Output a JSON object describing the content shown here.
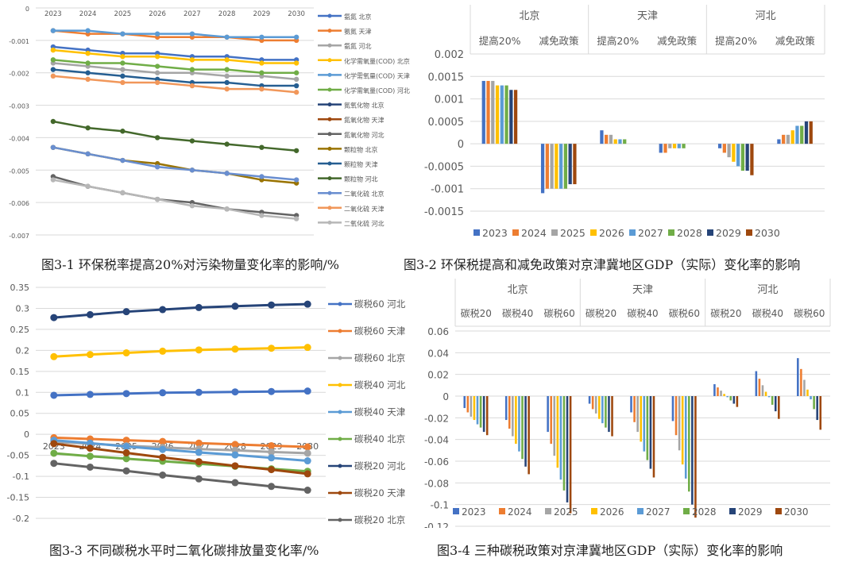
{
  "chart_data": [
    {
      "id": "fig3-1",
      "type": "line",
      "title": "",
      "caption": "图3-1 环保税率提高20%对污染物量变化率的影响/%",
      "x": [
        "2023",
        "2024",
        "2025",
        "2026",
        "2027",
        "2028",
        "2029",
        "2030"
      ],
      "ylim": [
        -0.007,
        0
      ],
      "yticks": [
        0,
        -0.001,
        -0.002,
        -0.003,
        -0.004,
        -0.005,
        -0.006,
        -0.007
      ],
      "ytick_labels": [
        "0",
        "-0.001",
        "-0.002",
        "-0.003",
        "-0.004",
        "-0.005",
        "-0.006",
        "-0.007"
      ],
      "grid": true,
      "legend_position": "right",
      "series": [
        {
          "name": "氨氮 北京",
          "color": "#4472C4",
          "values": [
            -0.0012,
            -0.0013,
            -0.0014,
            -0.0014,
            -0.0015,
            -0.0015,
            -0.0016,
            -0.0016
          ]
        },
        {
          "name": "氨氮 天津",
          "color": "#ED7D31",
          "values": [
            -0.0007,
            -0.0008,
            -0.0008,
            -0.0009,
            -0.0009,
            -0.0009,
            -0.001,
            -0.001
          ]
        },
        {
          "name": "氨氮 河北",
          "color": "#A5A5A5",
          "values": [
            -0.0017,
            -0.0018,
            -0.0019,
            -0.002,
            -0.002,
            -0.0021,
            -0.0021,
            -0.0022
          ]
        },
        {
          "name": "化学需氧量(COD) 北京",
          "color": "#FFC000",
          "values": [
            -0.0013,
            -0.0014,
            -0.0015,
            -0.0015,
            -0.0016,
            -0.0016,
            -0.0017,
            -0.0017
          ]
        },
        {
          "name": "化学需氧量(COD) 天津",
          "color": "#5B9BD5",
          "values": [
            -0.0007,
            -0.0007,
            -0.0008,
            -0.0008,
            -0.0008,
            -0.0009,
            -0.0009,
            -0.0009
          ]
        },
        {
          "name": "化学需氧量(COD) 河北",
          "color": "#70AD47",
          "values": [
            -0.0016,
            -0.0017,
            -0.0017,
            -0.0018,
            -0.0019,
            -0.0019,
            -0.002,
            -0.002
          ]
        },
        {
          "name": "氮氧化物 北京",
          "color": "#264478",
          "values": null
        },
        {
          "name": "氮氧化物 天津",
          "color": "#9E480E",
          "values": null
        },
        {
          "name": "氮氧化物 河北",
          "color": "#636363",
          "values": [
            -0.0052,
            -0.0055,
            -0.0057,
            -0.0059,
            -0.006,
            -0.0062,
            -0.0063,
            -0.0064
          ]
        },
        {
          "name": "颗粒物 北京",
          "color": "#997300",
          "values": [
            -0.0043,
            -0.0045,
            -0.0047,
            -0.0048,
            -0.005,
            -0.0051,
            -0.0053,
            -0.0054
          ]
        },
        {
          "name": "颗粒物 天津",
          "color": "#255E91",
          "values": [
            -0.0019,
            -0.002,
            -0.0021,
            -0.0022,
            -0.0023,
            -0.0023,
            -0.0024,
            -0.0024
          ]
        },
        {
          "name": "颗粒物 河北",
          "color": "#43682B",
          "values": [
            -0.0035,
            -0.0037,
            -0.0038,
            -0.004,
            -0.0041,
            -0.0042,
            -0.0043,
            -0.0044
          ]
        },
        {
          "name": "二氧化硫 北京",
          "color": "#698ED0",
          "values": [
            -0.0043,
            -0.0045,
            -0.0047,
            -0.0049,
            -0.005,
            -0.0051,
            -0.0052,
            -0.0053
          ]
        },
        {
          "name": "二氧化硫 天津",
          "color": "#F1975A",
          "values": [
            -0.0021,
            -0.0022,
            -0.0023,
            -0.0023,
            -0.0024,
            -0.0025,
            -0.0025,
            -0.0026
          ]
        },
        {
          "name": "二氧化硫 河北",
          "color": "#B7B7B7",
          "values": [
            -0.0053,
            -0.0055,
            -0.0057,
            -0.0059,
            -0.0061,
            -0.0062,
            -0.0064,
            -0.0065
          ]
        }
      ]
    },
    {
      "id": "fig3-2",
      "type": "bar",
      "title": "",
      "caption": "图3-2 环保税提高和减免政策对京津冀地区GDP（实际）变化率的影响",
      "region_labels": [
        "北京",
        "天津",
        "河北"
      ],
      "categories": [
        "提高20%",
        "减免政策",
        "提高20%",
        "减免政策",
        "提高20%",
        "减免政策"
      ],
      "ylim": [
        -0.0015,
        0.002
      ],
      "yticks": [
        0.002,
        0.0015,
        0.001,
        0.0005,
        0,
        -0.0005,
        -0.001,
        -0.0015
      ],
      "ytick_labels": [
        "0.002",
        "0.0015",
        "0.001",
        "0.0005",
        "0",
        "-0.0005",
        "-0.001",
        "-0.0015"
      ],
      "grid": true,
      "legend_position": "bottom",
      "series_names": [
        "2023",
        "2024",
        "2025",
        "2026",
        "2027",
        "2028",
        "2029",
        "2030"
      ],
      "series_colors": [
        "#4472C4",
        "#ED7D31",
        "#A5A5A5",
        "#FFC000",
        "#5B9BD5",
        "#70AD47",
        "#264478",
        "#9E480E"
      ],
      "values": [
        [
          0.0014,
          0.0014,
          0.0014,
          0.0013,
          0.0013,
          0.0013,
          0.0012,
          0.0012
        ],
        [
          -0.0011,
          -0.001,
          -0.001,
          -0.001,
          -0.001,
          -0.001,
          -0.0009,
          -0.0009
        ],
        [
          0.0003,
          0.0002,
          0.0002,
          0.0001,
          0.0001,
          0.0001,
          0,
          0
        ],
        [
          -0.0002,
          -0.0002,
          -0.0001,
          -0.0001,
          -0.0001,
          -0.0001,
          0,
          0
        ],
        [
          -0.0001,
          -0.0002,
          -0.0003,
          -0.0004,
          -0.0005,
          -0.0006,
          -0.0006,
          -0.0007
        ],
        [
          0.0001,
          0.0002,
          0.0002,
          0.0003,
          0.0004,
          0.0004,
          0.0005,
          0.0005
        ]
      ]
    },
    {
      "id": "fig3-3",
      "type": "line",
      "title": "",
      "caption": "图3-3 不同碳税水平时二氧化碳排放量变化率/%",
      "x": [
        "2023",
        "2024",
        "2025",
        "2026",
        "2027",
        "2028",
        "2029",
        "2030"
      ],
      "ylim": [
        -0.2,
        0.35
      ],
      "yticks": [
        0.35,
        0.3,
        0.25,
        0.2,
        0.15,
        0.1,
        0.05,
        0,
        -0.05,
        -0.1,
        -0.15,
        -0.2
      ],
      "ytick_labels": [
        "0.35",
        "0.3",
        "0.25",
        "0.2",
        "0.15",
        "0.1",
        "0.05",
        "0",
        "-0.05",
        "-0.1",
        "-0.15",
        "-0.2"
      ],
      "grid": true,
      "legend_position": "right",
      "series": [
        {
          "name": "碳税60 河北",
          "color": "#4472C4",
          "values": [
            0.093,
            0.095,
            0.097,
            0.099,
            0.1,
            0.101,
            0.102,
            0.103
          ]
        },
        {
          "name": "碳税60 天津",
          "color": "#ED7D31",
          "values": [
            -0.008,
            -0.011,
            -0.014,
            -0.017,
            -0.021,
            -0.024,
            -0.027,
            -0.03
          ]
        },
        {
          "name": "碳税60 北京",
          "color": "#A5A5A5",
          "values": [
            -0.018,
            -0.022,
            -0.027,
            -0.031,
            -0.035,
            -0.038,
            -0.042,
            -0.045
          ]
        },
        {
          "name": "碳税40 河北",
          "color": "#FFC000",
          "values": [
            0.185,
            0.19,
            0.194,
            0.198,
            0.201,
            0.203,
            0.205,
            0.207
          ]
        },
        {
          "name": "碳税40 天津",
          "color": "#5B9BD5",
          "values": [
            -0.014,
            -0.021,
            -0.029,
            -0.036,
            -0.043,
            -0.049,
            -0.056,
            -0.063
          ]
        },
        {
          "name": "碳税40 北京",
          "color": "#70AD47",
          "values": [
            -0.045,
            -0.052,
            -0.058,
            -0.064,
            -0.07,
            -0.076,
            -0.082,
            -0.088
          ]
        },
        {
          "name": "碳税20 河北",
          "color": "#264478",
          "values": [
            0.278,
            0.285,
            0.292,
            0.297,
            0.302,
            0.305,
            0.308,
            0.31
          ]
        },
        {
          "name": "碳税20 天津",
          "color": "#9E480E",
          "values": [
            -0.022,
            -0.033,
            -0.044,
            -0.055,
            -0.065,
            -0.075,
            -0.084,
            -0.094
          ]
        },
        {
          "name": "碳税20 北京",
          "color": "#636363",
          "values": [
            -0.069,
            -0.078,
            -0.087,
            -0.097,
            -0.106,
            -0.115,
            -0.124,
            -0.133
          ]
        }
      ]
    },
    {
      "id": "fig3-4",
      "type": "bar",
      "title": "",
      "caption": "图3-4 三种碳税政策对京津冀地区GDP（实际）变化率的影响",
      "region_labels": [
        "北京",
        "天津",
        "河北"
      ],
      "categories": [
        "碳税20",
        "碳税40",
        "碳税60",
        "碳税20",
        "碳税40",
        "碳税60",
        "碳税20",
        "碳税40",
        "碳税60"
      ],
      "ylim": [
        -0.12,
        0.06
      ],
      "yticks": [
        0.06,
        0.04,
        0.02,
        0,
        -0.02,
        -0.04,
        -0.06,
        -0.08,
        -0.1,
        -0.12
      ],
      "ytick_labels": [
        "0.06",
        "0.04",
        "0.02",
        "0",
        "-0.02",
        "-0.04",
        "-0.06",
        "-0.08",
        "-0.1",
        "-0.12"
      ],
      "grid": true,
      "legend_position": "bottom",
      "series_names": [
        "2023",
        "2024",
        "2025",
        "2026",
        "2027",
        "2028",
        "2029",
        "2030"
      ],
      "series_colors": [
        "#4472C4",
        "#ED7D31",
        "#A5A5A5",
        "#FFC000",
        "#5B9BD5",
        "#70AD47",
        "#264478",
        "#9E480E"
      ],
      "values": [
        [
          -0.011,
          -0.015,
          -0.019,
          -0.022,
          -0.026,
          -0.029,
          -0.033,
          -0.036
        ],
        [
          -0.022,
          -0.03,
          -0.037,
          -0.044,
          -0.051,
          -0.058,
          -0.065,
          -0.072
        ],
        [
          -0.033,
          -0.044,
          -0.055,
          -0.066,
          -0.077,
          -0.087,
          -0.098,
          -0.108
        ],
        [
          -0.007,
          -0.012,
          -0.016,
          -0.021,
          -0.025,
          -0.029,
          -0.033,
          -0.037
        ],
        [
          -0.015,
          -0.024,
          -0.033,
          -0.042,
          -0.051,
          -0.059,
          -0.067,
          -0.075
        ],
        [
          -0.023,
          -0.036,
          -0.05,
          -0.063,
          -0.076,
          -0.088,
          -0.1,
          -0.112
        ],
        [
          0.011,
          0.008,
          0.005,
          0.002,
          -0.001,
          -0.004,
          -0.007,
          -0.01
        ],
        [
          0.023,
          0.016,
          0.01,
          0.004,
          -0.001,
          -0.008,
          -0.014,
          -0.021
        ],
        [
          0.035,
          0.025,
          0.015,
          0.006,
          -0.003,
          -0.012,
          -0.022,
          -0.031
        ]
      ]
    }
  ]
}
